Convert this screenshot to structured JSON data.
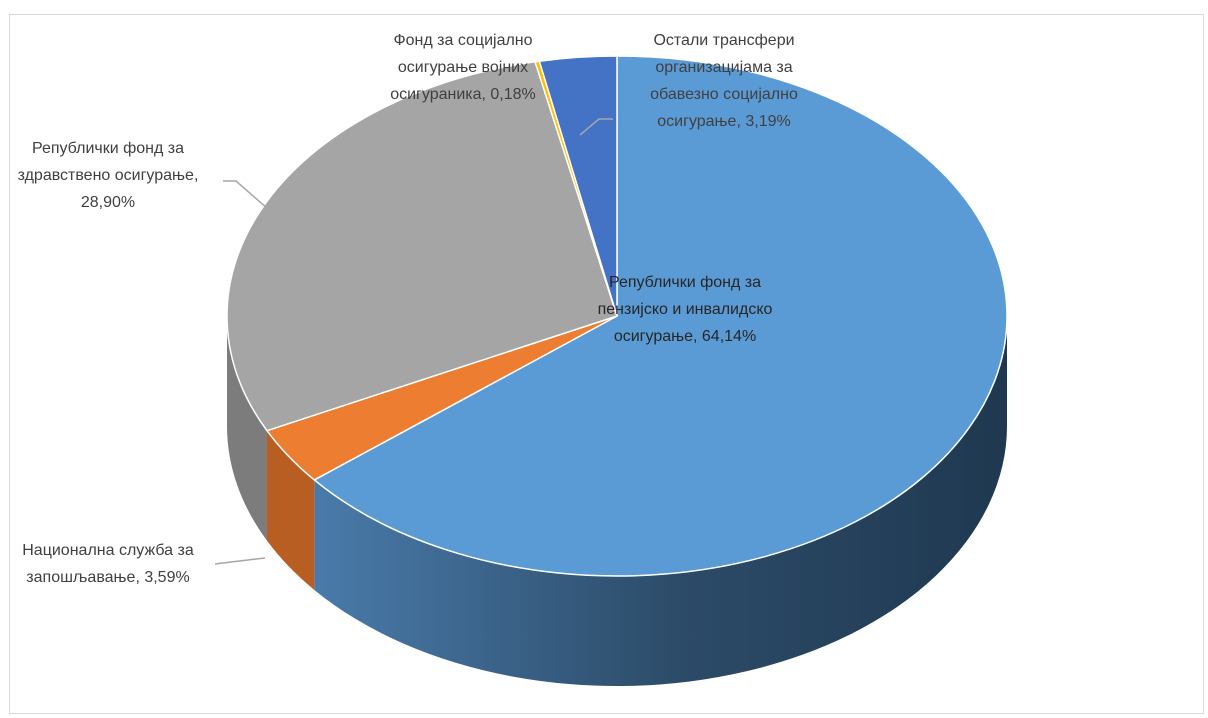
{
  "chart_data": {
    "type": "pie",
    "three_d": true,
    "title": "",
    "legend": "none",
    "slices": [
      {
        "name": "Републички фонд за пензијско и инвалидско осигурање",
        "value": 64.14,
        "label_lines": [
          "Републички фонд за",
          "пензијско и инвалидско",
          "осигурање, 64,14%"
        ],
        "color": "#5b9bd5",
        "side_color": "#3a6d9c"
      },
      {
        "name": "Национална служба за запошљавање",
        "value": 3.59,
        "label_lines": [
          "Национална служба за",
          "запошљавање, 3,59%"
        ],
        "color": "#ed7d31",
        "side_color": "#b85e22"
      },
      {
        "name": "Републички фонд за здравствено осигурање",
        "value": 28.9,
        "label_lines": [
          "Републички фонд за",
          "здравствено осигурање,",
          "28,90%"
        ],
        "color": "#a5a5a5",
        "side_color": "#7c7c7c"
      },
      {
        "name": "Фонд за социјално осигурање војних осигураника",
        "value": 0.18,
        "label_lines": [
          "Фонд за социјално",
          "осигурање војних",
          "осигураника, 0,18%"
        ],
        "color": "#ffc000",
        "side_color": "#c49400"
      },
      {
        "name": "Остали трансфери организацијама за обавезно социјално осигурање",
        "value": 3.19,
        "label_lines": [
          "Остали трансфери",
          "организацијама за",
          "обавезно социјално",
          "осигурање, 3,19%"
        ],
        "color": "#4472c4",
        "side_color": "#2f528f"
      }
    ]
  }
}
